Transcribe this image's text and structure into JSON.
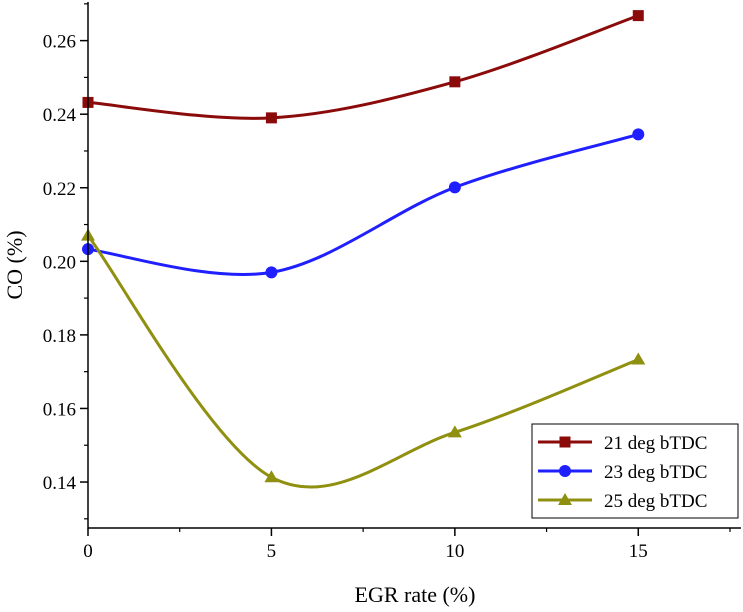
{
  "chart_data": {
    "type": "line",
    "xlabel": "EGR rate (%)",
    "ylabel": "CO (%)",
    "xlim": [
      0,
      17.8
    ],
    "ylim": [
      0.1275,
      0.2705
    ],
    "x_ticks": [
      0,
      5,
      10,
      15
    ],
    "y_ticks": [
      0.14,
      0.16,
      0.18,
      0.2,
      0.22,
      0.24,
      0.26
    ],
    "x_tick_labels": [
      "0",
      "5",
      "10",
      "15"
    ],
    "y_tick_labels": [
      "0.14",
      "0.16",
      "0.18",
      "0.20",
      "0.22",
      "0.24",
      "0.26"
    ],
    "grid": false,
    "legend_position": "bottom-right",
    "smooth": true,
    "x": [
      0,
      5,
      10,
      15
    ],
    "series": [
      {
        "name": "21 deg bTDC",
        "color": "#8b0a0a",
        "marker": "square",
        "values": [
          0.2432,
          0.239,
          0.2488,
          0.2668
        ]
      },
      {
        "name": "23 deg bTDC",
        "color": "#1f1fff",
        "marker": "circle",
        "values": [
          0.2033,
          0.197,
          0.2201,
          0.2345
        ]
      },
      {
        "name": "25 deg bTDC",
        "color": "#8f8f10",
        "marker": "triangle",
        "values": [
          0.207,
          0.1413,
          0.1535,
          0.1733
        ]
      }
    ]
  }
}
